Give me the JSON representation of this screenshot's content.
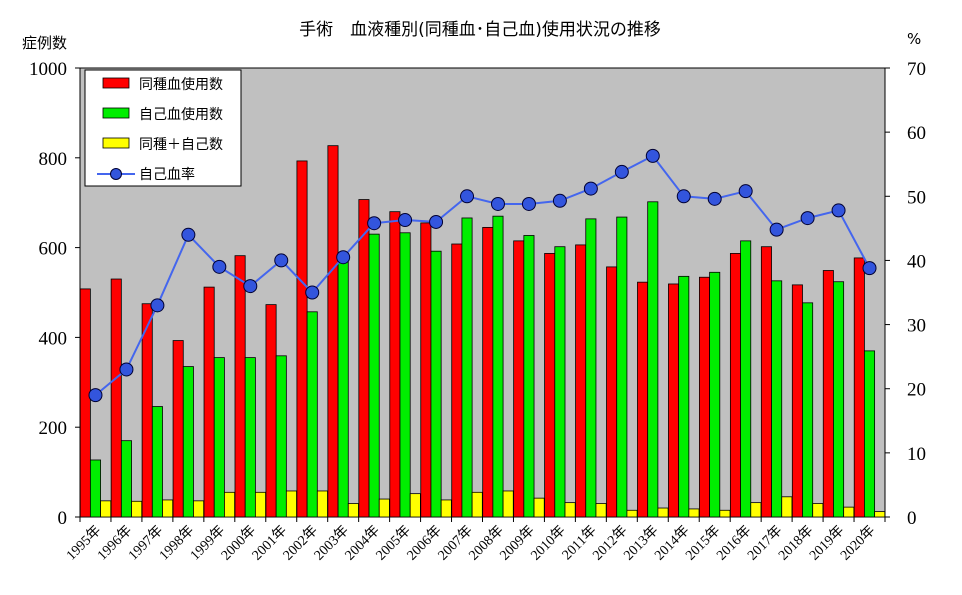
{
  "chart_data": {
    "type": "bar",
    "title": "手術　血液種別(同種血･自己血)使用状況の推移",
    "ylabel_left": "症例数",
    "ylabel_right": "%",
    "ylim_left": [
      0,
      1000
    ],
    "ylim_right": [
      0,
      70
    ],
    "yticks_left": [
      "0",
      "200",
      "400",
      "600",
      "800",
      "1000"
    ],
    "yticks_right": [
      "0",
      "10",
      "20",
      "30",
      "40",
      "50",
      "60",
      "70"
    ],
    "categories": [
      "1995年",
      "1996年",
      "1997年",
      "1998年",
      "1999年",
      "2000年",
      "2001年",
      "2002年",
      "2003年",
      "2004年",
      "2005年",
      "2006年",
      "2007年",
      "2008年",
      "2009年",
      "2010年",
      "2011年",
      "2012年",
      "2013年",
      "2014年",
      "2015年",
      "2016年",
      "2017年",
      "2018年",
      "2019年",
      "2020年"
    ],
    "series": [
      {
        "name": "同種血使用数",
        "kind": "bar",
        "axis": "left",
        "color": "#ff0000",
        "values": [
          508,
          530,
          475,
          393,
          512,
          582,
          473,
          793,
          827,
          707,
          680,
          655,
          608,
          645,
          615,
          587,
          606,
          557,
          523,
          519,
          534,
          587,
          602,
          517,
          549,
          577
        ]
      },
      {
        "name": "自己血使用数",
        "kind": "bar",
        "axis": "left",
        "color": "#00ee00",
        "values": [
          127,
          170,
          246,
          335,
          355,
          355,
          359,
          457,
          580,
          630,
          633,
          592,
          666,
          670,
          627,
          602,
          664,
          668,
          702,
          536,
          545,
          615,
          526,
          477,
          524,
          370
        ]
      },
      {
        "name": "同種＋自己数",
        "kind": "bar",
        "axis": "left",
        "color": "#ffff00",
        "values": [
          36,
          35,
          38,
          36,
          55,
          55,
          58,
          58,
          30,
          40,
          52,
          38,
          55,
          58,
          42,
          32,
          30,
          15,
          20,
          18,
          15,
          32,
          45,
          30,
          22,
          12
        ]
      },
      {
        "name": "自己血率",
        "kind": "line",
        "axis": "right",
        "color": "#3355dd",
        "values": [
          19.0,
          23.0,
          33.0,
          44.0,
          39.0,
          36.0,
          40.0,
          35.0,
          40.5,
          45.8,
          46.3,
          46.0,
          50.0,
          48.8,
          48.8,
          49.3,
          51.2,
          53.8,
          56.3,
          50.0,
          49.6,
          50.8,
          44.8,
          46.6,
          47.8,
          38.8
        ]
      }
    ],
    "legend_position": "top-left",
    "background": "#c0c0c0"
  }
}
